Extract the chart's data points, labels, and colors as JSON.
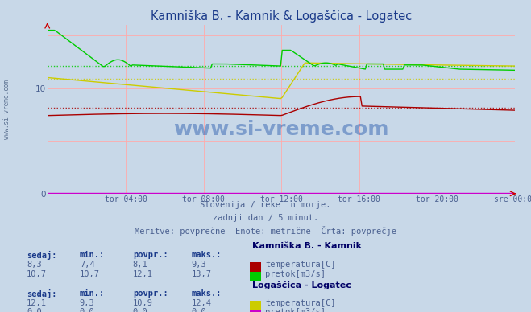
{
  "title": "Kamniška B. - Kamnik & Logaščica - Logatec",
  "title_color": "#1a3a8a",
  "bg_color": "#c8d8e8",
  "plot_bg_color": "#c8d8e8",
  "xlabel_ticks": [
    "tor 04:00",
    "tor 08:00",
    "tor 12:00",
    "tor 16:00",
    "tor 20:00",
    "sre 00:00"
  ],
  "ylim": [
    0,
    16
  ],
  "watermark_text": "www.si-vreme.com",
  "subtitle1": "Slovenija / reke in morje.",
  "subtitle2": "zadnji dan / 5 minut.",
  "subtitle3": "Meritve: povprečne  Enote: metrične  Črta: povprečje",
  "subtitle_color": "#4a6090",
  "n_points": 288,
  "kamnik_temp_color": "#aa0000",
  "kamnik_pretok_color": "#00cc00",
  "logatec_temp_color": "#cccc00",
  "logatec_pretok_color": "#cc00cc",
  "kamnik_temp_avg": 8.1,
  "kamnik_pretok_avg": 12.1,
  "logatec_temp_avg": 10.9,
  "logatec_pretok_avg": 0.0,
  "table_text_color": "#4a6090",
  "table_header_color": "#1a3a8a",
  "table_bold_color": "#000066",
  "kamnik_vals": [
    "8,3",
    "7,4",
    "8,1",
    "9,3"
  ],
  "kamnik_pretok_vals": [
    "10,7",
    "10,7",
    "12,1",
    "13,7"
  ],
  "logatec_vals": [
    "12,1",
    "9,3",
    "10,9",
    "12,4"
  ],
  "logatec_pretok_vals": [
    "0,0",
    "0,0",
    "0,0",
    "0,0"
  ],
  "col_headers": [
    "sedaj:",
    "min.:",
    "povpr.:",
    "maks.:"
  ],
  "kamnik_label": "Kamniška B. - Kamnik",
  "logatec_label": "Logaščica - Logatec",
  "temp_label": "temperatura[C]",
  "pretok_label": "pretok[m3/s]"
}
